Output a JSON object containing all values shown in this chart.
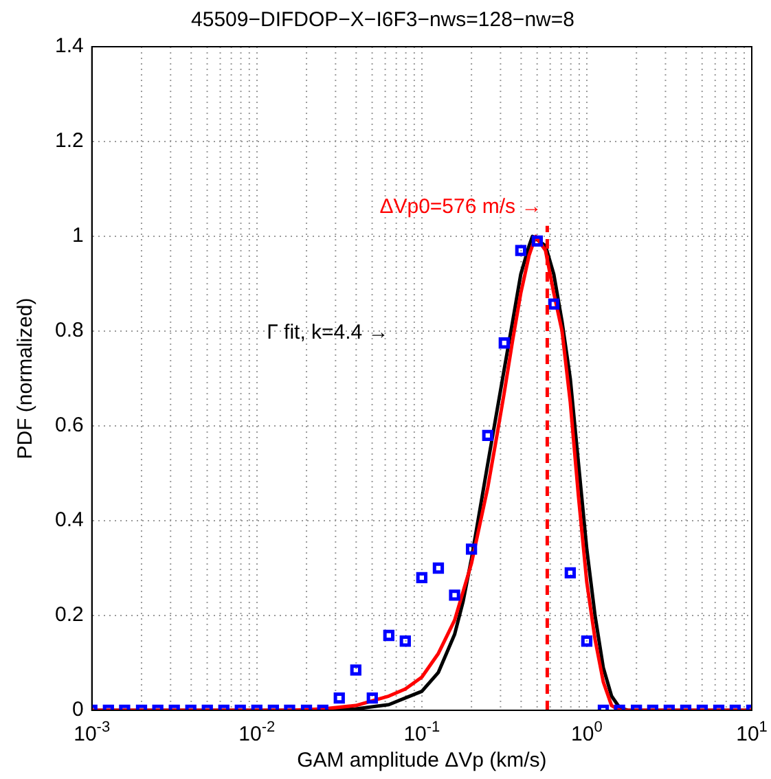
{
  "chart_data": {
    "type": "scatter",
    "title": "45509−DIFDOP−X−I6F3−nws=128−nw=8",
    "xlabel": "GAM amplitude ΔVp (km/s)",
    "ylabel": "PDF (normalized)",
    "annotations": [
      "Γ fit, k=4.4 →"
    ],
    "log": "x",
    "grid": true,
    "legend": false,
    "marker": "square",
    "xlim": [
      0.001,
      10
    ],
    "xticks": [
      {
        "value": 0.001,
        "label": "10$^{-3}$"
      },
      {
        "value": 0.01,
        "label": "10$^{-2}$"
      },
      {
        "value": 0.1,
        "label": "10$^{-1}$"
      },
      {
        "value": 1,
        "label": "10$^{0}$"
      },
      {
        "value": 10,
        "label": "10$^{1}$"
      }
    ],
    "ylim": [
      0,
      1.4
    ],
    "yticks": [
      0,
      0.2,
      0.4,
      0.6,
      0.8,
      1,
      1.2,
      1.4
    ],
    "ref_lines": [
      {
        "axis": "x",
        "value": 0.576,
        "label": "ΔVp0=576 m/s →",
        "color": "#ff0000",
        "line_style": "dashed"
      }
    ],
    "series": [
      {
        "type": "scatter",
        "color": "#0000ff",
        "x": [
          0.001,
          0.00126,
          0.00158,
          0.002,
          0.00251,
          0.00316,
          0.00398,
          0.00501,
          0.00631,
          0.00794,
          0.01,
          0.0126,
          0.0158,
          0.02,
          0.0251,
          0.0316,
          0.0398,
          0.0501,
          0.0631,
          0.0794,
          0.1,
          0.126,
          0.158,
          0.2,
          0.251,
          0.316,
          0.398,
          0.501,
          0.631,
          0.794,
          1,
          1.26,
          1.58,
          2,
          2.51,
          3.16,
          3.98,
          5.01,
          6.31,
          7.94,
          10
        ],
        "values": [
          0,
          0,
          0,
          0,
          0,
          0,
          0,
          0,
          0,
          0,
          0,
          0,
          0,
          0,
          0,
          0.026,
          0.085,
          0.026,
          0.158,
          0.146,
          0.28,
          0.3,
          0.243,
          0.34,
          0.58,
          0.775,
          0.97,
          0.99,
          0.857,
          0.29,
          0.146,
          0,
          0,
          0,
          0,
          0,
          0,
          0,
          0,
          0,
          0
        ]
      },
      {
        "type": "line",
        "color": "#ff0000",
        "marker": "none",
        "x": [
          0.001,
          0.0158,
          0.0251,
          0.0398,
          0.0631,
          0.0794,
          0.1,
          0.126,
          0.158,
          0.2,
          0.251,
          0.282,
          0.316,
          0.355,
          0.398,
          0.447,
          0.49,
          0.562,
          0.631,
          0.708,
          0.794,
          0.891,
          1,
          1.122,
          1.259,
          1.413,
          1.585,
          10
        ],
        "values": [
          0,
          0,
          0.003,
          0.01,
          0.03,
          0.045,
          0.07,
          0.12,
          0.19,
          0.31,
          0.47,
          0.57,
          0.67,
          0.78,
          0.88,
          0.96,
          1,
          0.97,
          0.88,
          0.8,
          0.65,
          0.45,
          0.27,
          0.15,
          0.06,
          0.01,
          0,
          0
        ]
      },
      {
        "type": "line",
        "color": "#000000",
        "marker": "none",
        "x": [
          0.001,
          0.0251,
          0.0398,
          0.0631,
          0.1,
          0.126,
          0.158,
          0.178,
          0.2,
          0.251,
          0.316,
          0.355,
          0.398,
          0.447,
          0.468,
          0.562,
          0.631,
          0.708,
          0.794,
          0.891,
          1,
          1.122,
          1.259,
          1.413,
          1.585,
          1.778,
          10
        ],
        "values": [
          0,
          0,
          0.003,
          0.012,
          0.04,
          0.08,
          0.16,
          0.23,
          0.32,
          0.52,
          0.72,
          0.82,
          0.92,
          0.98,
          1,
          0.98,
          0.92,
          0.82,
          0.7,
          0.52,
          0.34,
          0.2,
          0.09,
          0.03,
          0.005,
          0,
          0
        ]
      }
    ]
  }
}
